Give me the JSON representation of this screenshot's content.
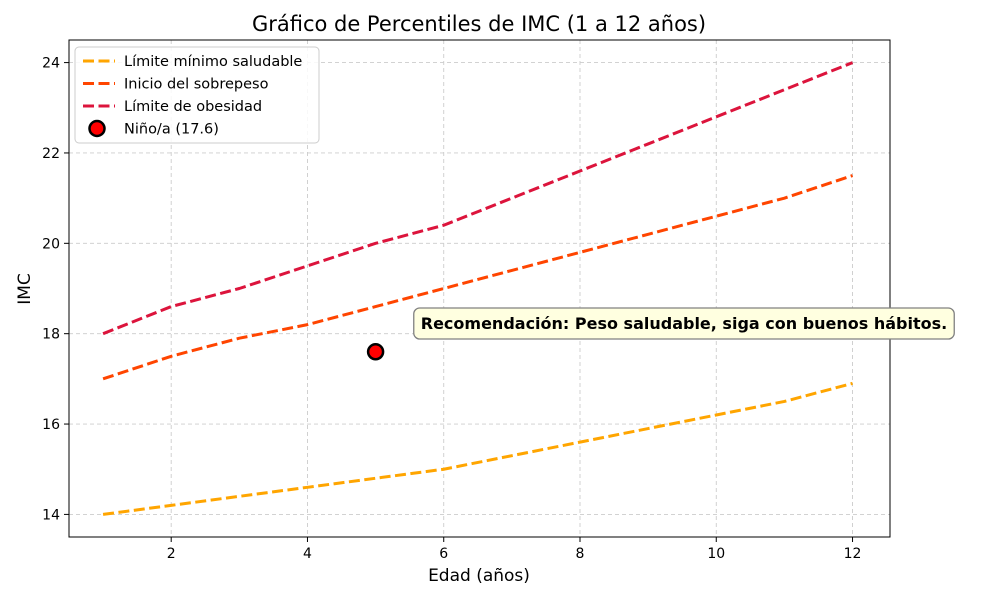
{
  "chart_data": {
    "type": "line",
    "title": "Gráfico de Percentiles de IMC (1 a 12 años)",
    "xlabel": "Edad (años)",
    "ylabel": "IMC",
    "xlim": [
      0.5,
      12.55
    ],
    "ylim": [
      13.5,
      24.5
    ],
    "x_ticks": [
      2,
      4,
      6,
      8,
      10,
      12
    ],
    "y_ticks": [
      14,
      16,
      18,
      20,
      22,
      24
    ],
    "grid": true,
    "legend_position": "upper-left",
    "x": [
      1,
      2,
      3,
      4,
      5,
      6,
      7,
      8,
      9,
      10,
      11,
      12
    ],
    "series": [
      {
        "name": "Límite mínimo saludable",
        "color": "#FFA500",
        "style": "dashed",
        "values": [
          14.0,
          14.2,
          14.4,
          14.6,
          14.8,
          15.0,
          15.3,
          15.6,
          15.9,
          16.2,
          16.5,
          16.9
        ]
      },
      {
        "name": "Inicio del sobrepeso",
        "color": "#FF4500",
        "style": "dashed",
        "values": [
          17.0,
          17.5,
          17.9,
          18.2,
          18.6,
          19.0,
          19.4,
          19.8,
          20.2,
          20.6,
          21.0,
          21.5
        ]
      },
      {
        "name": "Límite de obesidad",
        "color": "#DC143C",
        "style": "dashed",
        "values": [
          18.0,
          18.6,
          19.0,
          19.5,
          20.0,
          20.4,
          21.0,
          21.6,
          22.2,
          22.8,
          23.4,
          24.0
        ]
      }
    ],
    "point": {
      "name": "Niño/a (17.6)",
      "x": 5,
      "y": 17.6,
      "color": "#FF0000"
    },
    "annotation": {
      "text": "Recomendación: Peso saludable, siga con buenos hábitos.",
      "background": "#FFFFE0",
      "border_color": "#808080"
    }
  }
}
